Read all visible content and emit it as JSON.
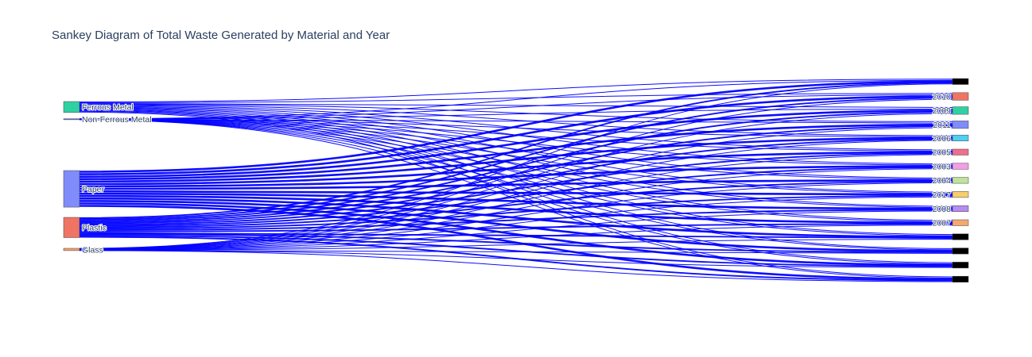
{
  "chart_data": {
    "type": "sankey",
    "title": "Sankey Diagram of Total Waste Generated by Material and Year",
    "link_color": "#0000ff",
    "sources": [
      {
        "label": "Ferrous Metal",
        "color": "#2fd1a3",
        "value": 14
      },
      {
        "label": "Non-Ferrous Metal",
        "color": "#636efa",
        "value": 1
      },
      {
        "label": "Paper",
        "color": "#7f8cfa",
        "value": 47
      },
      {
        "label": "Plastic",
        "color": "#ef7463",
        "value": 26
      },
      {
        "label": "Glass",
        "color": "#f5a26b",
        "value": 3
      }
    ],
    "targets": [
      {
        "label": "",
        "color": "#000000"
      },
      {
        "label": "2010",
        "color": "#ef7463"
      },
      {
        "label": "2009",
        "color": "#2fd1a3"
      },
      {
        "label": "2011",
        "color": "#7f8cfa"
      },
      {
        "label": "2006",
        "color": "#4fd0f0"
      },
      {
        "label": "2005",
        "color": "#f06e8c"
      },
      {
        "label": "2003",
        "color": "#f59ee8"
      },
      {
        "label": "2004",
        "color": "#bfe39a"
      },
      {
        "label": "2017",
        "color": "#f7cd6e"
      },
      {
        "label": "2008",
        "color": "#b58cf0"
      },
      {
        "label": "2007",
        "color": "#f5a870"
      },
      {
        "label": "",
        "color": "#000000"
      },
      {
        "label": "",
        "color": "#000000"
      },
      {
        "label": "",
        "color": "#000000"
      },
      {
        "label": "",
        "color": "#000000"
      }
    ]
  }
}
